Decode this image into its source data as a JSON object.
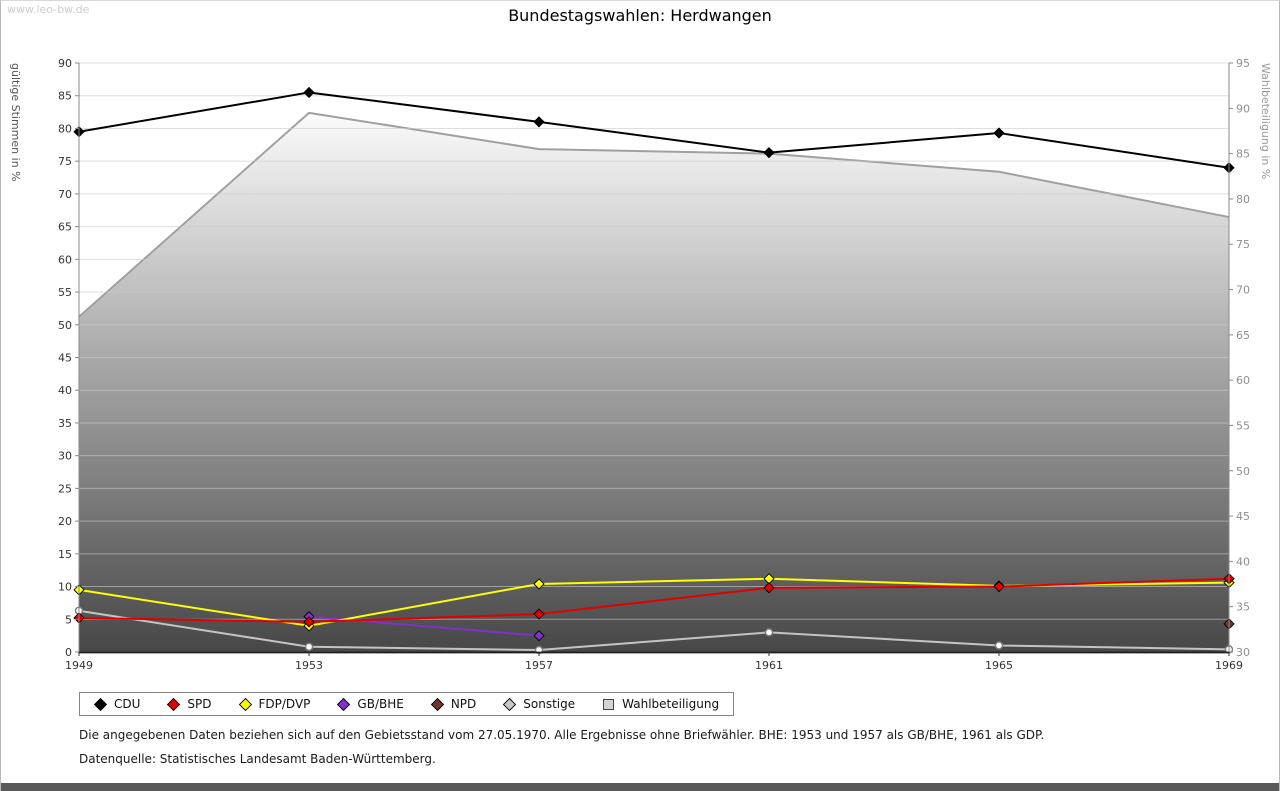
{
  "watermark": "www.leo-bw.de",
  "title": "Bundestagswahlen: Herdwangen",
  "footnotes": {
    "note": "Die angegebenen Daten beziehen sich auf den Gebietsstand vom 27.05.1970. Alle Ergebnisse ohne Briefwähler. BHE: 1953 und 1957 als GB/BHE, 1961 als GDP.",
    "source": "Datenquelle: Statistisches Landesamt Baden-Württemberg."
  },
  "chart_data": {
    "type": "line",
    "x_categories": [
      "1949",
      "1953",
      "1957",
      "1961",
      "1965",
      "1969"
    ],
    "left_axis": {
      "title": "gültige Stimmen in %",
      "min": 0,
      "max": 90,
      "step": 5
    },
    "right_axis": {
      "title": "Wahlbeteiligung in %",
      "min": 30,
      "max": 95,
      "step": 5
    },
    "grid": true,
    "turnout_area": {
      "name": "Wahlbeteiligung",
      "axis": "right",
      "values": [
        67,
        89.5,
        85.5,
        85,
        83,
        78
      ],
      "stroke": "#a0a0a0",
      "fill_top": "#fbfbfb",
      "fill_bottom": "#474747"
    },
    "series": [
      {
        "name": "CDU",
        "color": "#000000",
        "marker": "diamond",
        "values": [
          79.5,
          85.5,
          81,
          76.3,
          79.3,
          74
        ]
      },
      {
        "name": "SPD",
        "color": "#e10000",
        "marker": "diamond",
        "values": [
          5.2,
          4.6,
          5.8,
          9.8,
          10,
          11.2
        ]
      },
      {
        "name": "FDP/DVP",
        "color": "#ffff00",
        "marker": "diamond",
        "values": [
          9.5,
          4,
          10.4,
          11.2,
          10.1,
          10.6
        ]
      },
      {
        "name": "GB/BHE",
        "color": "#8031c7",
        "marker": "diamond",
        "values": [
          null,
          5.4,
          2.5,
          null,
          null,
          null
        ]
      },
      {
        "name": "NPD",
        "color": "#6e362c",
        "marker": "diamond",
        "values": [
          null,
          null,
          null,
          null,
          null,
          4.3
        ]
      },
      {
        "name": "Sonstige",
        "color": "#c4c4c4",
        "marker": "circle",
        "values": [
          6.3,
          0.8,
          0.3,
          3,
          1,
          0.4
        ]
      }
    ],
    "legend": [
      {
        "label": "CDU",
        "marker": "diamond",
        "color": "#000000"
      },
      {
        "label": "SPD",
        "marker": "diamond",
        "color": "#e10000"
      },
      {
        "label": "FDP/DVP",
        "marker": "diamond",
        "color": "#ffff00"
      },
      {
        "label": "GB/BHE",
        "marker": "diamond",
        "color": "#8031c7"
      },
      {
        "label": "NPD",
        "marker": "diamond",
        "color": "#6e362c"
      },
      {
        "label": "Sonstige",
        "marker": "diamond",
        "color": "#c8c8c8"
      },
      {
        "label": "Wahlbeteiligung",
        "marker": "square",
        "color": "#d4d4d4"
      }
    ]
  }
}
